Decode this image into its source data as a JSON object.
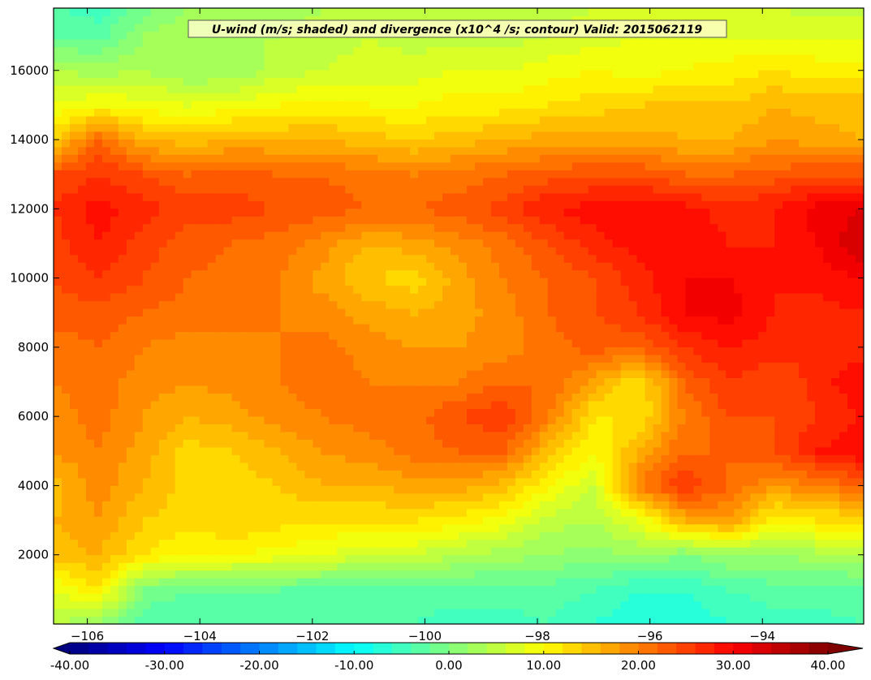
{
  "chart_data": {
    "type": "heatmap",
    "title": "U-wind (m/s; shaded) and divergence (x10^4 /s; contour) Valid: 2015062119",
    "xlabel": "",
    "ylabel": "",
    "xlim": [
      -106.6,
      -92.2
    ],
    "ylim": [
      0,
      17800
    ],
    "x_ticks": [
      -106,
      -104,
      -102,
      -100,
      -98,
      -96,
      -94
    ],
    "x_tick_labels": [
      "−106",
      "−104",
      "−102",
      "−100",
      "−98",
      "−96",
      "−94"
    ],
    "y_ticks": [
      2000,
      4000,
      6000,
      8000,
      10000,
      12000,
      14000,
      16000
    ],
    "y_tick_labels": [
      "2000",
      "4000",
      "6000",
      "8000",
      "10000",
      "12000",
      "14000",
      "16000"
    ],
    "colorbar": {
      "ticks": [
        -40,
        -30,
        -20,
        -10,
        0,
        10,
        20,
        30,
        40
      ],
      "tick_labels": [
        "-40.00",
        "-30.00",
        "-20.00",
        "-10.00",
        "0.00",
        "10.00",
        "20.00",
        "30.00",
        "40.00"
      ],
      "vmin": -40,
      "vmax": 40,
      "levels": 40,
      "colormap": "jet",
      "extend": "both"
    },
    "grid": false,
    "x": [
      -106.6,
      -105.8,
      -105.0,
      -104.2,
      -103.4,
      -102.6,
      -101.8,
      -101.0,
      -100.2,
      -99.4,
      -98.6,
      -97.8,
      -97.0,
      -96.2,
      -95.4,
      -94.6,
      -93.8,
      -93.0,
      -92.2
    ],
    "y": [
      0,
      1000,
      2000,
      3000,
      4000,
      5000,
      6000,
      7000,
      8000,
      9000,
      10000,
      11000,
      12000,
      13000,
      14000,
      15000,
      16000,
      17000,
      17800
    ],
    "z": [
      [
        4,
        2,
        -4,
        -4,
        -4,
        -4,
        -4,
        -4,
        -4,
        -5,
        -5,
        -4,
        -6,
        -8,
        -8,
        -6,
        -5,
        -5,
        -4
      ],
      [
        8,
        12,
        0,
        -2,
        -2,
        -2,
        -3,
        -3,
        -3,
        -3,
        -3,
        -3,
        -4,
        -6,
        -6,
        -4,
        -3,
        -3,
        -2
      ],
      [
        15,
        16,
        12,
        10,
        10,
        9,
        8,
        6,
        6,
        4,
        3,
        2,
        1,
        2,
        0,
        2,
        2,
        3,
        3
      ],
      [
        16,
        18,
        14,
        13,
        14,
        13,
        12,
        12,
        12,
        11,
        9,
        5,
        4,
        8,
        16,
        18,
        10,
        12,
        12
      ],
      [
        15,
        19,
        16,
        13,
        13,
        14,
        16,
        16,
        17,
        17,
        15,
        10,
        6,
        20,
        26,
        22,
        18,
        20,
        22
      ],
      [
        18,
        20,
        17,
        13,
        14,
        16,
        18,
        19,
        21,
        22,
        22,
        15,
        10,
        16,
        22,
        22,
        24,
        28,
        30
      ],
      [
        19,
        21,
        18,
        16,
        17,
        19,
        20,
        21,
        21,
        24,
        26,
        20,
        12,
        12,
        20,
        24,
        24,
        26,
        28
      ],
      [
        20,
        21,
        19,
        18,
        19,
        20,
        21,
        20,
        20,
        20,
        22,
        22,
        17,
        12,
        22,
        26,
        24,
        27,
        30
      ],
      [
        21,
        22,
        20,
        19,
        19,
        20,
        21,
        19,
        18,
        18,
        19,
        21,
        23,
        22,
        26,
        28,
        27,
        26,
        27
      ],
      [
        23,
        23,
        22,
        21,
        21,
        20,
        19,
        17,
        16,
        17,
        19,
        22,
        24,
        26,
        30,
        31,
        28,
        27,
        28
      ],
      [
        24,
        26,
        24,
        22,
        21,
        20,
        17,
        14,
        13,
        17,
        20,
        22,
        24,
        27,
        30,
        30,
        28,
        29,
        30
      ],
      [
        25,
        28,
        25,
        23,
        22,
        21,
        19,
        16,
        17,
        19,
        21,
        24,
        27,
        29,
        30,
        28,
        28,
        30,
        34
      ],
      [
        26,
        29,
        27,
        25,
        25,
        24,
        23,
        22,
        22,
        23,
        25,
        28,
        29,
        30,
        29,
        27,
        28,
        31,
        32
      ],
      [
        24,
        26,
        24,
        22,
        23,
        22,
        22,
        21,
        20,
        21,
        22,
        23,
        24,
        24,
        22,
        22,
        23,
        24,
        24
      ],
      [
        14,
        22,
        16,
        15,
        16,
        16,
        16,
        15,
        14,
        15,
        16,
        17,
        17,
        17,
        16,
        16,
        18,
        17,
        16
      ],
      [
        8,
        10,
        9,
        8,
        9,
        10,
        11,
        10,
        10,
        11,
        11,
        12,
        13,
        14,
        15,
        14,
        16,
        15,
        15
      ],
      [
        4,
        3,
        4,
        2,
        2,
        5,
        6,
        7,
        7,
        8,
        8,
        9,
        10,
        9,
        10,
        11,
        12,
        11,
        11
      ],
      [
        -2,
        -3,
        2,
        4,
        4,
        4,
        5,
        6,
        5,
        5,
        5,
        6,
        7,
        8,
        8,
        8,
        8,
        8,
        8
      ],
      [
        -4,
        -5,
        -1,
        2,
        3,
        3,
        4,
        5,
        4,
        4,
        4,
        5,
        6,
        6,
        6,
        6,
        6,
        5,
        5
      ]
    ]
  }
}
